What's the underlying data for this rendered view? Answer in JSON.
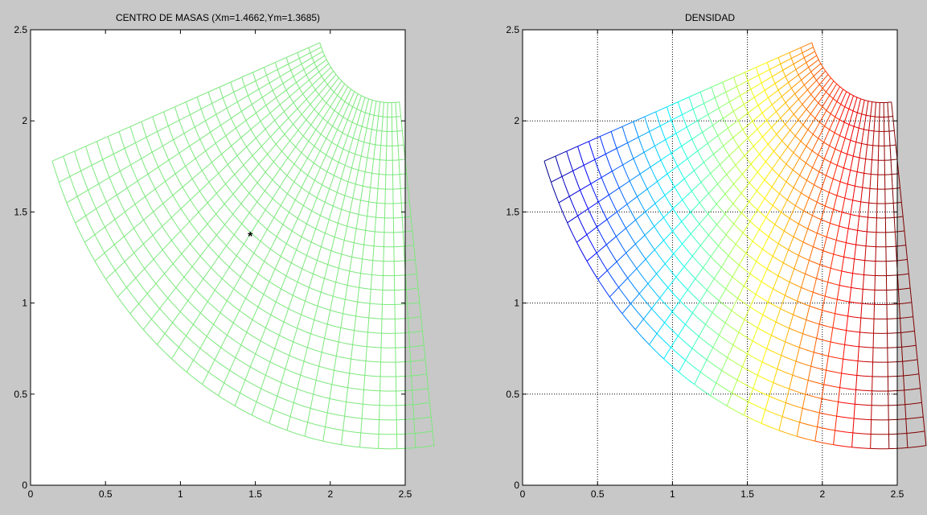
{
  "chart_data": [
    {
      "type": "mesh",
      "title": "CENTRO DE MASAS (Xm=1.4662,Ym=1.3685)",
      "xlim": [
        0,
        2.5
      ],
      "ylim": [
        0,
        2.5
      ],
      "xticks": [
        "0",
        "0.5",
        "1",
        "1.5",
        "2",
        "2.5"
      ],
      "yticks": [
        "0",
        "0.5",
        "1",
        "1.5",
        "2",
        "2.5"
      ],
      "grid": false,
      "mesh": {
        "shape": "annular sector",
        "center": [
          2.4,
          2.6
        ],
        "r_inner": 0.5,
        "r_outer": 2.4,
        "angle_start_deg": 200,
        "angle_end_deg": 277,
        "radial_divisions": 24,
        "angular_divisions": 26,
        "color": "#7de87d"
      },
      "center_of_mass": {
        "x": 1.4662,
        "y": 1.3685,
        "marker": "*"
      }
    },
    {
      "type": "mesh",
      "title": "DENSIDAD",
      "xlim": [
        0,
        2.5
      ],
      "ylim": [
        0,
        2.5
      ],
      "xticks": [
        "0",
        "0.5",
        "1",
        "1.5",
        "2",
        "2.5"
      ],
      "yticks": [
        "0",
        "0.5",
        "1",
        "1.5",
        "2",
        "2.5"
      ],
      "grid": true,
      "mesh": {
        "shape": "annular sector",
        "center": [
          2.4,
          2.6
        ],
        "r_inner": 0.5,
        "r_outer": 2.4,
        "angle_start_deg": 200,
        "angle_end_deg": 277,
        "radial_divisions": 24,
        "angular_divisions": 26,
        "colormap": "jet",
        "color_by": "x"
      }
    }
  ]
}
